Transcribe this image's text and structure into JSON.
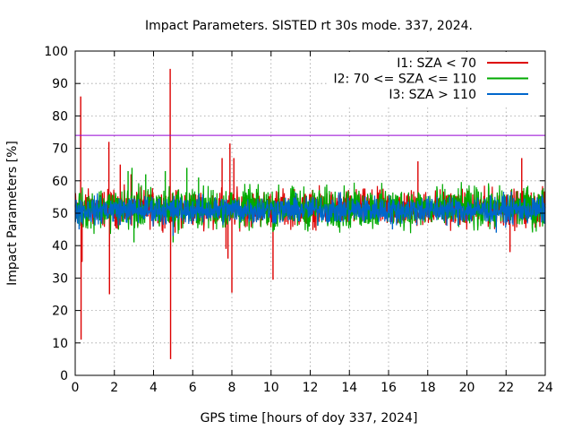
{
  "chart_data": {
    "type": "line",
    "title": "Impact Parameters. SISTED rt 30s mode. 337, 2024.",
    "xlabel": "GPS time [hours of doy 337, 2024]",
    "ylabel": "Impact Parameters [%]",
    "xlim": [
      0,
      24
    ],
    "ylim": [
      0,
      100
    ],
    "xticks": [
      0,
      2,
      4,
      6,
      8,
      10,
      12,
      14,
      16,
      18,
      20,
      22,
      24
    ],
    "yticks": [
      0,
      10,
      20,
      30,
      40,
      50,
      60,
      70,
      80,
      90,
      100
    ],
    "grid": true,
    "legend_position": "top-right",
    "reference_line": {
      "value": 74,
      "color": "#9400d3"
    },
    "series": [
      {
        "name": "I1: SZA < 70",
        "color": "#dd0000",
        "base": [
          44,
          59
        ],
        "spikes": [
          [
            0.28,
            86
          ],
          [
            0.3,
            11
          ],
          [
            0.35,
            35
          ],
          [
            1.72,
            72
          ],
          [
            1.75,
            25
          ],
          [
            2.3,
            65
          ],
          [
            4.85,
            94.5
          ],
          [
            4.87,
            5
          ],
          [
            7.9,
            71.5
          ],
          [
            8.0,
            25.5
          ],
          [
            8.1,
            67
          ],
          [
            10.1,
            29.5
          ],
          [
            7.5,
            67
          ],
          [
            17.5,
            66
          ],
          [
            22.2,
            38
          ],
          [
            22.8,
            67
          ],
          [
            2.85,
            62
          ],
          [
            5.1,
            44
          ],
          [
            7.7,
            39
          ],
          [
            7.8,
            36
          ],
          [
            3.2,
            46
          ]
        ]
      },
      {
        "name": "I2: 70 <= SZA <= 110",
        "color": "#00aa00",
        "base": [
          43,
          60
        ],
        "spikes": [
          [
            2.9,
            64
          ],
          [
            3.0,
            41
          ],
          [
            4.6,
            63
          ],
          [
            5.0,
            41
          ],
          [
            5.7,
            64
          ],
          [
            2.7,
            63
          ],
          [
            6.3,
            61
          ],
          [
            3.6,
            62
          ]
        ]
      },
      {
        "name": "I3: SZA > 110",
        "color": "#0066cc",
        "base": [
          44,
          58
        ],
        "spikes": [
          [
            5.0,
            43
          ],
          [
            0.2,
            45
          ],
          [
            16.2,
            45
          ],
          [
            21.5,
            44
          ]
        ]
      }
    ]
  }
}
